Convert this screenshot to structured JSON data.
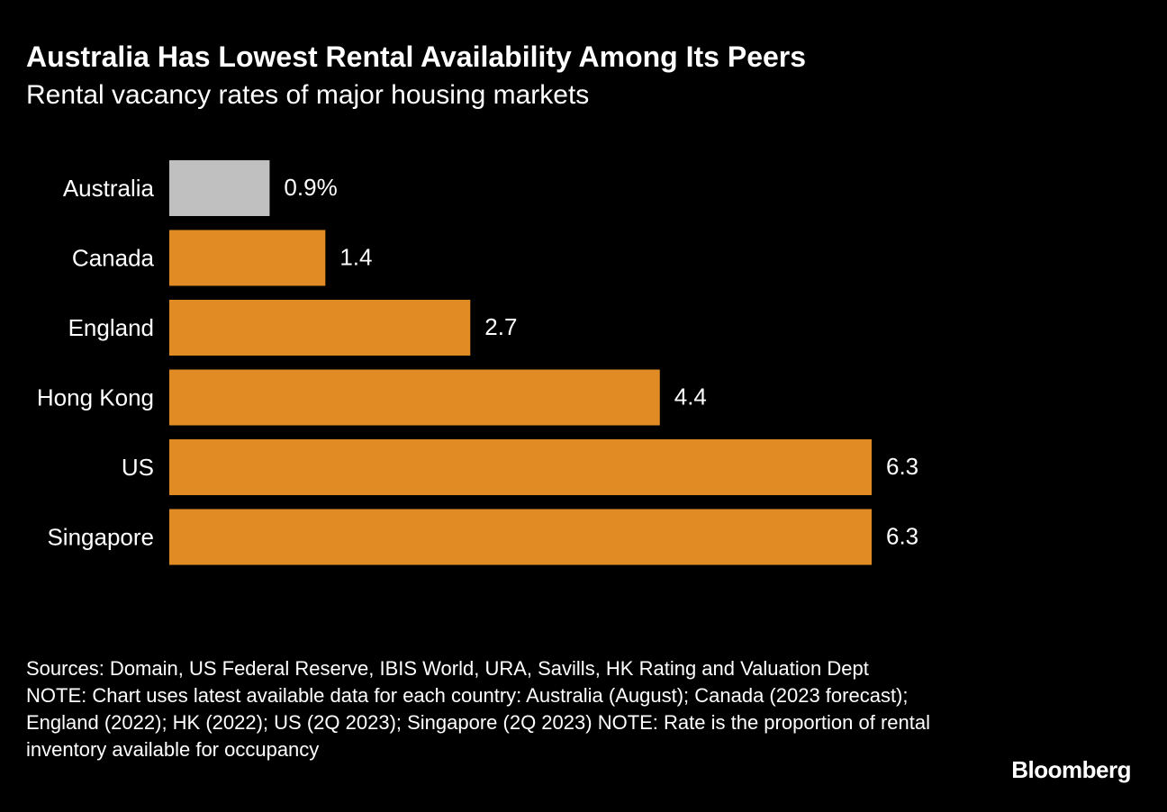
{
  "header": {
    "title": "Australia Has Lowest Rental Availability Among Its Peers",
    "subtitle": "Rental vacancy rates of major housing markets"
  },
  "chart_data": {
    "type": "bar",
    "orientation": "horizontal",
    "title": "Australia Has Lowest Rental Availability Among Its Peers",
    "subtitle": "Rental vacancy rates of major housing markets",
    "categories": [
      "Australia",
      "Canada",
      "England",
      "Hong Kong",
      "US",
      "Singapore"
    ],
    "values": [
      0.9,
      1.4,
      2.7,
      4.4,
      6.3,
      6.3
    ],
    "value_labels": [
      "0.9%",
      "1.4",
      "2.7",
      "4.4",
      "6.3",
      "6.3"
    ],
    "colors": [
      "#c0c0c0",
      "#e08b24",
      "#e08b24",
      "#e08b24",
      "#e08b24",
      "#e08b24"
    ],
    "xlim": [
      0,
      6.3
    ],
    "grid": false,
    "legend": "none"
  },
  "footer": {
    "sources": "Sources: Domain, US Federal Reserve, IBIS World, URA, Savills, HK Rating and Valuation Dept",
    "note": "NOTE: Chart uses latest available data for each country: Australia (August); Canada (2023 forecast); England (2022); HK (2022); US (2Q 2023); Singapore (2Q 2023) NOTE: Rate is the proportion of rental inventory available for occupancy",
    "brand": "Bloomberg"
  }
}
